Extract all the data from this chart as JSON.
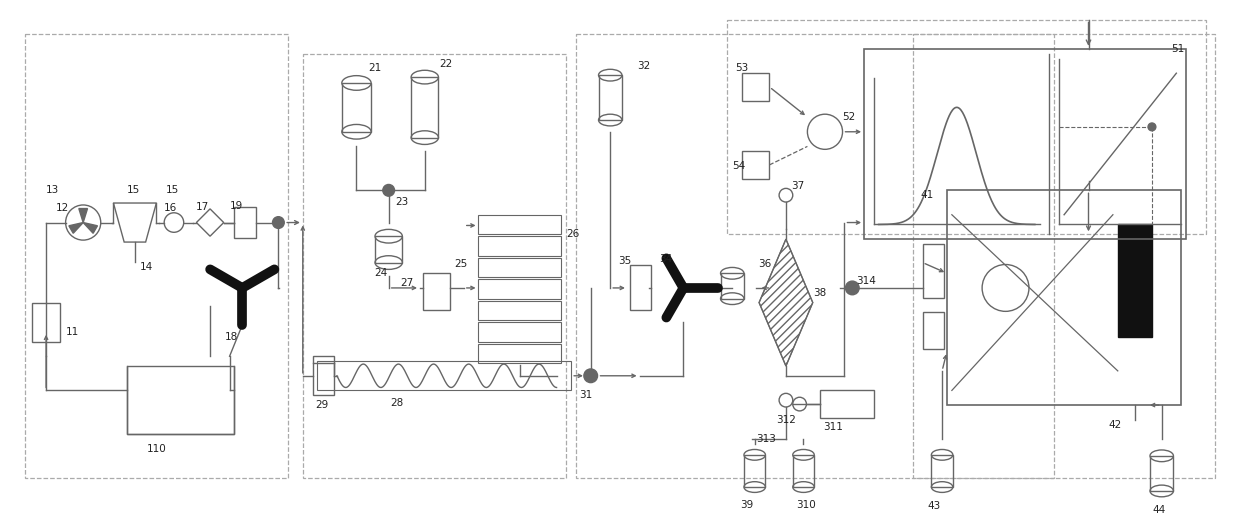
{
  "bg": "#ffffff",
  "lc": "#666666",
  "figsize": [
    12.4,
    5.14
  ],
  "dpi": 100
}
